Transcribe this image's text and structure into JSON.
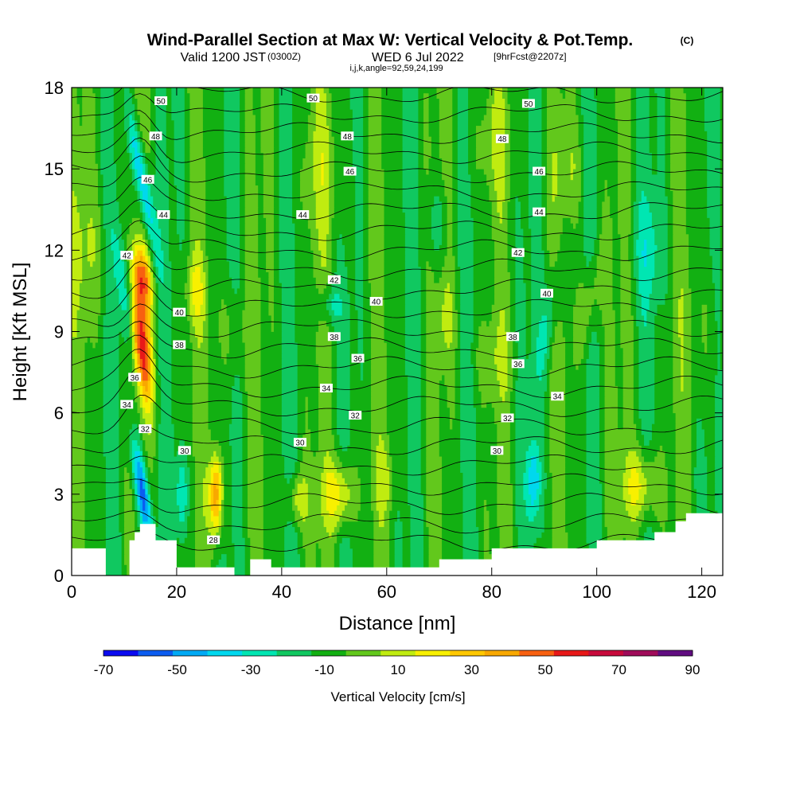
{
  "header": {
    "title": "Wind-Parallel Section at Max W: Vertical Velocity & Pot.Temp.",
    "copyright": "(C)",
    "valid_prefix": "Valid 1200 JST",
    "valid_utc": "(0300Z)",
    "valid_date": "WED 6 Jul 2022",
    "forecast": "[9hrFcst@2207z]",
    "indices": "i,j,k,angle=92,59,24,199"
  },
  "chart_data": {
    "type": "heatmap",
    "xlabel": "Distance [nm]",
    "ylabel": "Height [Kft MSL]",
    "xlim": [
      0,
      124
    ],
    "ylim": [
      0,
      18
    ],
    "xticks": [
      0,
      20,
      40,
      60,
      80,
      100,
      120
    ],
    "yticks": [
      0,
      3,
      6,
      9,
      12,
      15,
      18
    ],
    "grid": false,
    "colorbar": {
      "label": "Vertical Velocity [cm/s]",
      "tick_labels": [
        "-70",
        "-50",
        "-30",
        "-10",
        "10",
        "30",
        "50",
        "70",
        "90"
      ],
      "bounds": [
        -70,
        -60,
        -50,
        -40,
        -30,
        -20,
        -10,
        0,
        10,
        20,
        30,
        40,
        50,
        60,
        70,
        80,
        90
      ],
      "colors": [
        "#0a0af0",
        "#0b5cf0",
        "#00aaf5",
        "#00d8ee",
        "#00e6b2",
        "#10c860",
        "#12b012",
        "#62c81c",
        "#c0ec10",
        "#f8f000",
        "#ffc800",
        "#f8a800",
        "#f86010",
        "#e81818",
        "#c80a3c",
        "#a00c5a",
        "#600c80"
      ]
    },
    "background_value": -5,
    "terrain": [
      [
        0,
        1.0
      ],
      [
        6.5,
        1.0
      ],
      [
        6.5,
        0.0
      ],
      [
        11,
        0.0
      ],
      [
        11,
        1.3
      ],
      [
        12,
        1.3
      ],
      [
        12,
        1.6
      ],
      [
        13,
        1.6
      ],
      [
        13,
        1.9
      ],
      [
        16,
        1.9
      ],
      [
        16,
        1.3
      ],
      [
        20,
        1.3
      ],
      [
        20,
        0.3
      ],
      [
        31,
        0.3
      ],
      [
        31,
        0.0
      ],
      [
        34,
        0.0
      ],
      [
        34,
        0.6
      ],
      [
        38,
        0.6
      ],
      [
        38,
        0.3
      ],
      [
        70,
        0.3
      ],
      [
        70,
        0.6
      ],
      [
        80,
        0.6
      ],
      [
        80,
        1.0
      ],
      [
        100,
        1.0
      ],
      [
        100,
        1.3
      ],
      [
        111,
        1.3
      ],
      [
        111,
        1.6
      ],
      [
        115,
        1.6
      ],
      [
        115,
        2.0
      ],
      [
        117,
        2.0
      ],
      [
        117,
        2.3
      ],
      [
        124,
        2.3
      ]
    ],
    "w_features": [
      {
        "x": 13.0,
        "z": 8.5,
        "sx": 0.9,
        "sz": 2.2,
        "tilt": -0.15,
        "w": 75
      },
      {
        "x": 13.5,
        "z": 11.0,
        "sx": 0.8,
        "sz": 1.2,
        "tilt": -0.2,
        "w": 45
      },
      {
        "x": 10.8,
        "z": 9.5,
        "sx": 0.7,
        "sz": 3.0,
        "tilt": -0.2,
        "w": -40
      },
      {
        "x": 13.5,
        "z": 14.5,
        "sx": 0.6,
        "sz": 2.5,
        "tilt": -0.3,
        "w": -45
      },
      {
        "x": 13.5,
        "z": 3.0,
        "sx": 0.6,
        "sz": 2.0,
        "tilt": -0.25,
        "w": -55
      },
      {
        "x": 21.0,
        "z": 3.0,
        "sx": 0.5,
        "sz": 1.5,
        "tilt": 0,
        "w": -25
      },
      {
        "x": 23.5,
        "z": 10.5,
        "sx": 0.9,
        "sz": 1.2,
        "tilt": 0,
        "w": 20
      },
      {
        "x": 27.5,
        "z": 3.0,
        "sx": 0.6,
        "sz": 1.6,
        "tilt": 0,
        "w": 55
      },
      {
        "x": 51.0,
        "z": 3.0,
        "sx": 1.4,
        "sz": 1.3,
        "tilt": 0,
        "w": 35
      },
      {
        "x": 43.0,
        "z": 2.8,
        "sx": 0.9,
        "sz": 1.0,
        "tilt": 0,
        "w": 25
      },
      {
        "x": 60.0,
        "z": 3.5,
        "sx": 0.8,
        "sz": 1.2,
        "tilt": 0,
        "w": 15
      },
      {
        "x": 71.5,
        "z": 9.5,
        "sx": 0.7,
        "sz": 1.5,
        "tilt": 0,
        "w": 15
      },
      {
        "x": 98.5,
        "z": 10.0,
        "sx": 1.0,
        "sz": 2.0,
        "tilt": 0.3,
        "w": 20
      },
      {
        "x": 108.5,
        "z": 3.3,
        "sx": 1.6,
        "sz": 1.4,
        "tilt": 0,
        "w": 30
      },
      {
        "x": 88.0,
        "z": 3.5,
        "sx": 0.6,
        "sz": 1.5,
        "tilt": 0,
        "w": -30
      },
      {
        "x": 91.0,
        "z": 9.5,
        "sx": 0.8,
        "sz": 2.5,
        "tilt": 0.3,
        "w": -18
      },
      {
        "x": 49.0,
        "z": 10.0,
        "sx": 1.0,
        "sz": 0.7,
        "tilt": 0,
        "w": -18
      },
      {
        "x": 69.5,
        "z": 13.0,
        "sx": 0.9,
        "sz": 1.5,
        "tilt": 0,
        "w": -15
      },
      {
        "x": 95.0,
        "z": 15.0,
        "sx": 1.4,
        "sz": 2.0,
        "tilt": 0,
        "w": 12
      },
      {
        "x": 80.0,
        "z": 16.0,
        "sx": 2.0,
        "sz": 2.0,
        "tilt": 0,
        "w": 12
      },
      {
        "x": 48.0,
        "z": 15.0,
        "sx": 2.0,
        "sz": 3.0,
        "tilt": 0,
        "w": 12
      },
      {
        "x": 30.0,
        "z": 9.0,
        "sx": 1.5,
        "sz": 2.0,
        "tilt": 0,
        "w": 12
      },
      {
        "x": 3.0,
        "z": 12.0,
        "sx": 2.0,
        "sz": 3.0,
        "tilt": 0,
        "w": 12
      },
      {
        "x": 120.0,
        "z": 9.0,
        "sx": 1.5,
        "sz": 3.0,
        "tilt": 0,
        "w": 10
      },
      {
        "x": 80.0,
        "z": 8.0,
        "sx": 2.0,
        "sz": 1.5,
        "tilt": 0,
        "w": 10
      },
      {
        "x": 110.0,
        "z": 12.0,
        "sx": 1.5,
        "sz": 2.0,
        "tilt": 0,
        "w": -15
      }
    ],
    "isentrope_levels": [
      28,
      29,
      30,
      31,
      32,
      33,
      34,
      35,
      36,
      37,
      38,
      39,
      40,
      41,
      42,
      43,
      44,
      45,
      46,
      47,
      48,
      49,
      50,
      51
    ],
    "contour_labels": [
      {
        "text": "50",
        "x": 17.0,
        "z": 17.5
      },
      {
        "text": "50",
        "x": 46.0,
        "z": 17.6
      },
      {
        "text": "50",
        "x": 87.0,
        "z": 17.4
      },
      {
        "text": "48",
        "x": 16.0,
        "z": 16.2
      },
      {
        "text": "48",
        "x": 52.5,
        "z": 16.2
      },
      {
        "text": "48",
        "x": 82.0,
        "z": 16.1
      },
      {
        "text": "46",
        "x": 14.5,
        "z": 14.6
      },
      {
        "text": "46",
        "x": 53.0,
        "z": 14.9
      },
      {
        "text": "46",
        "x": 89.0,
        "z": 14.9
      },
      {
        "text": "44",
        "x": 17.5,
        "z": 13.3
      },
      {
        "text": "44",
        "x": 44.0,
        "z": 13.3
      },
      {
        "text": "44",
        "x": 89.0,
        "z": 13.4
      },
      {
        "text": "42",
        "x": 10.5,
        "z": 11.8
      },
      {
        "text": "42",
        "x": 50.0,
        "z": 10.9
      },
      {
        "text": "42",
        "x": 85.0,
        "z": 11.9
      },
      {
        "text": "40",
        "x": 20.5,
        "z": 9.7
      },
      {
        "text": "40",
        "x": 58.0,
        "z": 10.1
      },
      {
        "text": "40",
        "x": 90.5,
        "z": 10.4
      },
      {
        "text": "38",
        "x": 20.5,
        "z": 8.5
      },
      {
        "text": "38",
        "x": 50.0,
        "z": 8.8
      },
      {
        "text": "38",
        "x": 84.0,
        "z": 8.8
      },
      {
        "text": "36",
        "x": 12.0,
        "z": 7.3
      },
      {
        "text": "36",
        "x": 54.5,
        "z": 8.0
      },
      {
        "text": "36",
        "x": 85.0,
        "z": 7.8
      },
      {
        "text": "34",
        "x": 10.5,
        "z": 6.3
      },
      {
        "text": "34",
        "x": 48.5,
        "z": 6.9
      },
      {
        "text": "34",
        "x": 92.5,
        "z": 6.6
      },
      {
        "text": "32",
        "x": 14.0,
        "z": 5.4
      },
      {
        "text": "32",
        "x": 54.0,
        "z": 5.9
      },
      {
        "text": "32",
        "x": 83.0,
        "z": 5.8
      },
      {
        "text": "30",
        "x": 21.5,
        "z": 4.6
      },
      {
        "text": "30",
        "x": 43.5,
        "z": 4.9
      },
      {
        "text": "30",
        "x": 81.0,
        "z": 4.6
      },
      {
        "text": "28",
        "x": 27.0,
        "z": 1.3
      }
    ]
  }
}
